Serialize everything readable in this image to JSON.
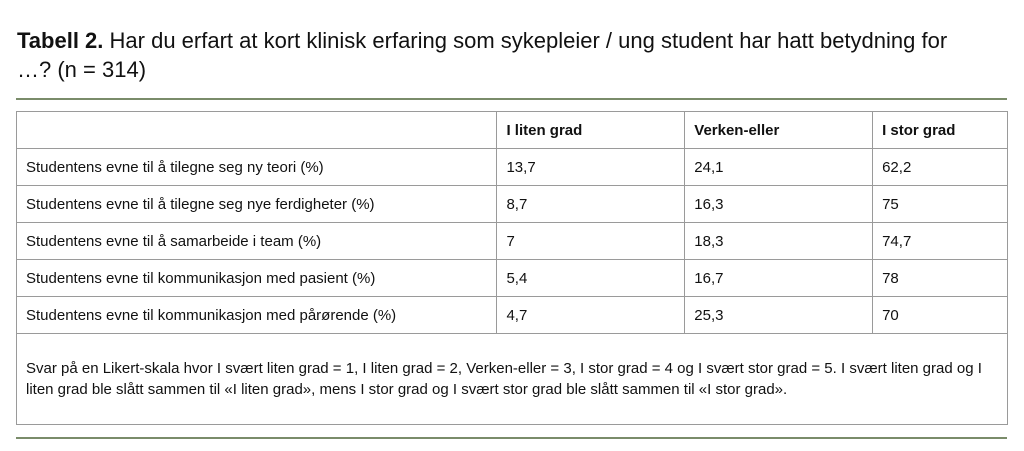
{
  "header": {
    "label": "Tabell 2.",
    "title": "Har du erfart at kort klinisk erfaring som sykepleier / ung student har hatt betydning for …? (n = 314)"
  },
  "table": {
    "columns": [
      "",
      "I liten grad",
      "Verken-eller",
      "I stor grad"
    ],
    "rows": [
      [
        "Studentens evne til å tilegne seg ny teori (%)",
        "13,7",
        "24,1",
        "62,2"
      ],
      [
        "Studentens evne til å tilegne seg nye ferdigheter (%)",
        "8,7",
        "16,3",
        "75"
      ],
      [
        "Studentens evne til å samarbeide i team (%)",
        "7",
        "18,3",
        "74,7"
      ],
      [
        "Studentens evne til kommunikasjon med pasient (%)",
        "5,4",
        "16,7",
        "78"
      ],
      [
        "Studentens evne til kommunikasjon med pårørende (%)",
        "4,7",
        "25,3",
        "70"
      ]
    ],
    "note": "Svar på en Likert-skala hvor I svært liten grad = 1, I liten grad = 2, Verken-eller = 3, I stor grad = 4 og I svært stor grad = 5. I svært liten grad og I liten grad ble slått sammen til «I liten grad», mens I stor grad og I svært stor grad ble slått sammen til «I stor grad»."
  }
}
